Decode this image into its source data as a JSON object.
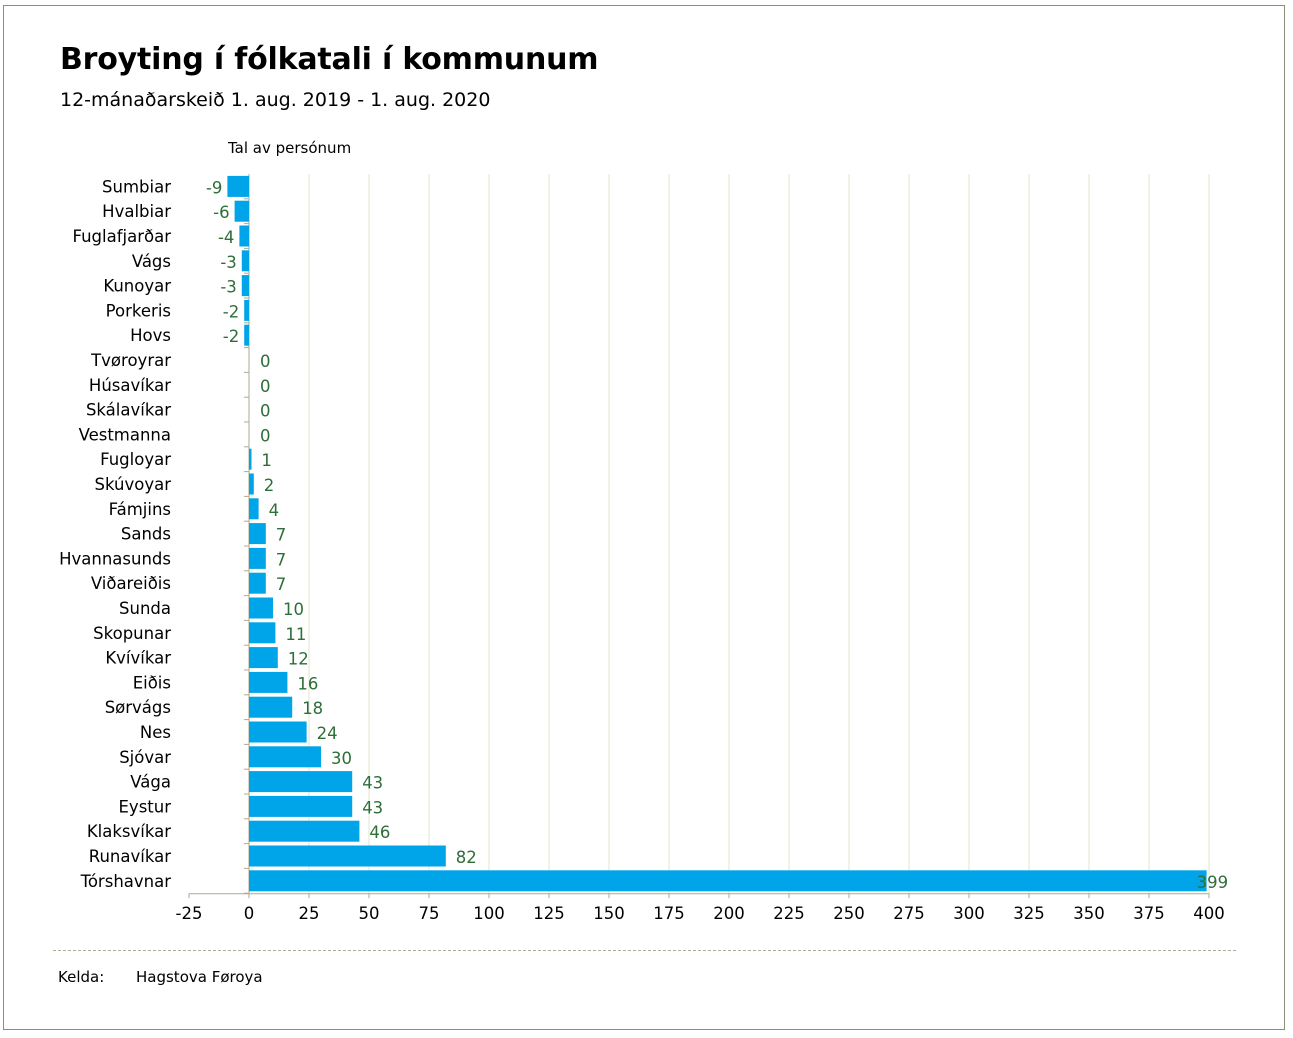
{
  "chart_data": {
    "type": "bar",
    "orientation": "horizontal",
    "title": "Broyting í fólkatali í kommunum",
    "subtitle": "12-mánaðarskeið 1. aug. 2019 - 1. aug. 2020",
    "value_axis_label": "Tal av persónum",
    "categories": [
      "Sumbiar",
      "Hvalbiar",
      "Fuglafjarðar",
      "Vágs",
      "Kunoyar",
      "Porkeris",
      "Hovs",
      "Tvøroyrar",
      "Húsavíkar",
      "Skálavíkar",
      "Vestmanna",
      "Fugloyar",
      "Skúvoyar",
      "Fámjins",
      "Sands",
      "Hvannasunds",
      "Viðareiðis",
      "Sunda",
      "Skopunar",
      "Kvívíkar",
      "Eiðis",
      "Sørvágs",
      "Nes",
      "Sjóvar",
      "Vága",
      "Eystur",
      "Klaksvíkar",
      "Runavíkar",
      "Tórshavnar"
    ],
    "values": [
      -9,
      -6,
      -4,
      -3,
      -3,
      -2,
      -2,
      0,
      0,
      0,
      0,
      1,
      2,
      4,
      7,
      7,
      7,
      10,
      11,
      12,
      16,
      18,
      24,
      30,
      43,
      43,
      46,
      82,
      399
    ],
    "xlim": [
      -25,
      400
    ],
    "xticks": [
      -25,
      0,
      25,
      50,
      75,
      100,
      125,
      150,
      175,
      200,
      225,
      250,
      275,
      300,
      325,
      350,
      375,
      400
    ],
    "grid": "vertical",
    "bar_color": "#00a4e8",
    "value_label_color": "#2e6e3a",
    "grid_color": "#e6e8d6"
  },
  "source": {
    "label": "Kelda:",
    "value": "Hagstova Føroya"
  }
}
